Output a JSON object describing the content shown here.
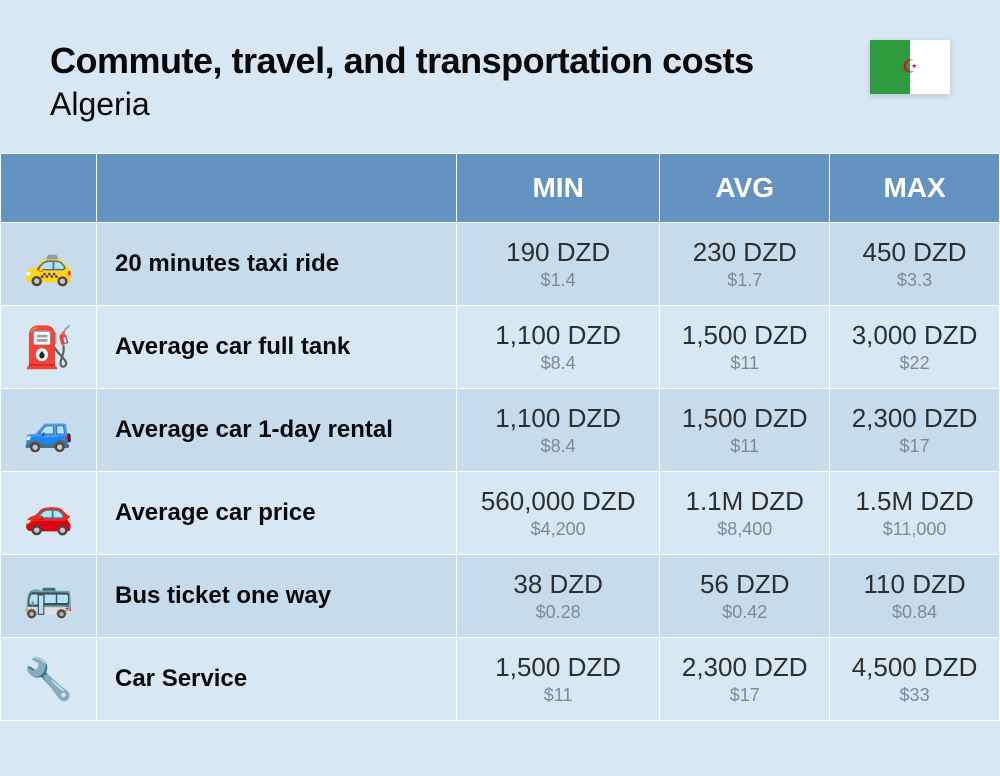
{
  "header": {
    "title": "Commute, travel, and transportation costs",
    "country": "Algeria",
    "flag_colors": {
      "left": "#2e9b3f",
      "right": "#ffffff",
      "emblem": "#d21034"
    }
  },
  "table": {
    "columns": [
      "MIN",
      "AVG",
      "MAX"
    ],
    "header_bg": "#6593c1",
    "header_fg": "#ffffff",
    "row_bg_odd": "#c6dced",
    "row_bg_even": "#d8e7f4",
    "main_text_color": "#2e2e2e",
    "sub_text_color": "#7a8a98",
    "label_fontsize": 24,
    "main_fontsize": 26,
    "sub_fontsize": 18,
    "header_fontsize": 28,
    "rows": [
      {
        "icon": "🚕",
        "icon_name": "taxi-icon",
        "label": "20 minutes taxi ride",
        "min": {
          "local": "190 DZD",
          "usd": "$1.4"
        },
        "avg": {
          "local": "230 DZD",
          "usd": "$1.7"
        },
        "max": {
          "local": "450 DZD",
          "usd": "$3.3"
        }
      },
      {
        "icon": "⛽",
        "icon_name": "fuel-pump-icon",
        "label": "Average car full tank",
        "min": {
          "local": "1,100 DZD",
          "usd": "$8.4"
        },
        "avg": {
          "local": "1,500 DZD",
          "usd": "$11"
        },
        "max": {
          "local": "3,000 DZD",
          "usd": "$22"
        }
      },
      {
        "icon": "🚙",
        "icon_name": "car-rental-icon",
        "label": "Average car 1-day rental",
        "min": {
          "local": "1,100 DZD",
          "usd": "$8.4"
        },
        "avg": {
          "local": "1,500 DZD",
          "usd": "$11"
        },
        "max": {
          "local": "2,300 DZD",
          "usd": "$17"
        }
      },
      {
        "icon": "🚗",
        "icon_name": "car-icon",
        "label": "Average car price",
        "min": {
          "local": "560,000 DZD",
          "usd": "$4,200"
        },
        "avg": {
          "local": "1.1M DZD",
          "usd": "$8,400"
        },
        "max": {
          "local": "1.5M DZD",
          "usd": "$11,000"
        }
      },
      {
        "icon": "🚌",
        "icon_name": "bus-icon",
        "label": "Bus ticket one way",
        "min": {
          "local": "38 DZD",
          "usd": "$0.28"
        },
        "avg": {
          "local": "56 DZD",
          "usd": "$0.42"
        },
        "max": {
          "local": "110 DZD",
          "usd": "$0.84"
        }
      },
      {
        "icon": "🔧",
        "icon_name": "wrench-icon",
        "label": "Car Service",
        "min": {
          "local": "1,500 DZD",
          "usd": "$11"
        },
        "avg": {
          "local": "2,300 DZD",
          "usd": "$17"
        },
        "max": {
          "local": "4,500 DZD",
          "usd": "$33"
        }
      }
    ]
  }
}
